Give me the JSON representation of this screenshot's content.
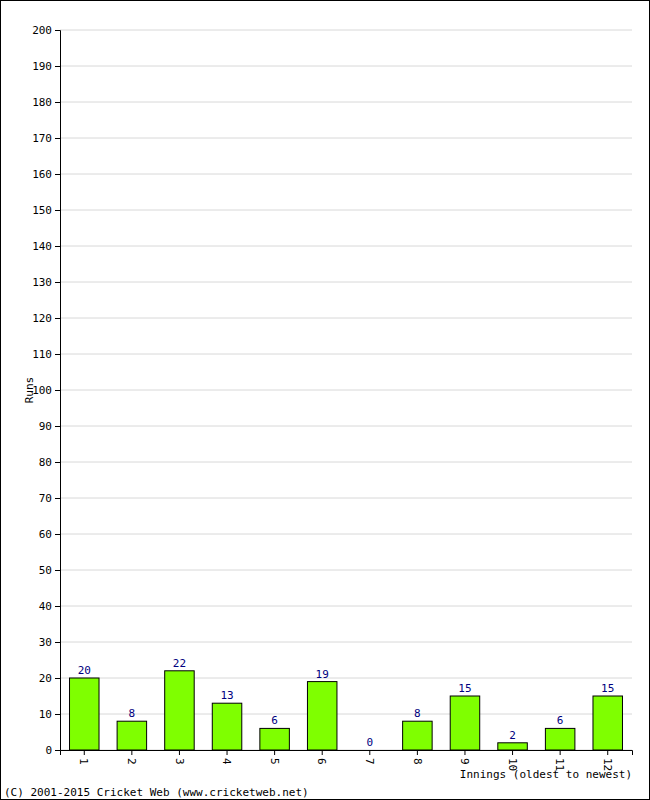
{
  "chart_data": {
    "type": "bar",
    "x_label": "Innings (oldest to newest)",
    "y_label": "Runs",
    "annotations": [
      "(C) 2001-2015 Cricket Web (www.cricketweb.net)"
    ],
    "categories": [
      "1",
      "2",
      "3",
      "4",
      "5",
      "6",
      "7",
      "8",
      "9",
      "10",
      "11",
      "12"
    ],
    "values": [
      20,
      8,
      22,
      13,
      6,
      19,
      0,
      8,
      15,
      2,
      6,
      15
    ],
    "color": "#7fff00",
    "ylim": [
      0,
      200
    ],
    "yticks": [
      0,
      10,
      20,
      30,
      40,
      50,
      60,
      70,
      80,
      90,
      100,
      110,
      120,
      130,
      140,
      150,
      160,
      170,
      180,
      190,
      200
    ],
    "grid": true,
    "data_labels": true
  }
}
